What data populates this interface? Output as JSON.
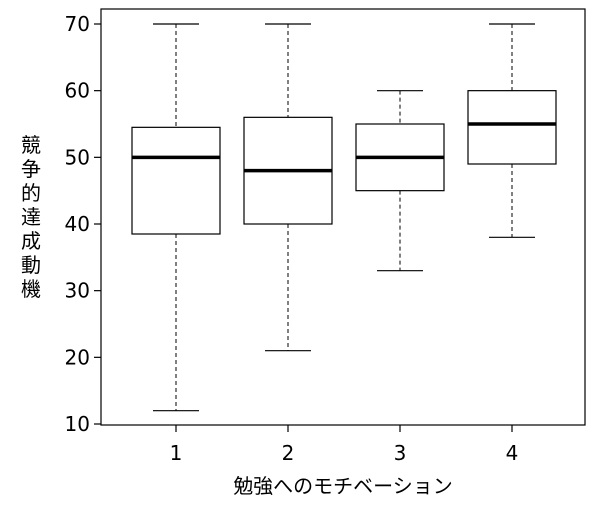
{
  "chart_data": {
    "type": "boxplot",
    "xlabel": "勉強へのモチベーション",
    "ylabel": "競争的達成動機",
    "ylim": [
      10,
      70
    ],
    "yticks": [
      10,
      20,
      30,
      40,
      50,
      60,
      70
    ],
    "categories": [
      "1",
      "2",
      "3",
      "4"
    ],
    "boxes": [
      {
        "category": "1",
        "min": 12,
        "q1": 38.5,
        "median": 50,
        "q3": 54.5,
        "max": 70
      },
      {
        "category": "2",
        "min": 21,
        "q1": 40,
        "median": 48,
        "q3": 56,
        "max": 70
      },
      {
        "category": "3",
        "min": 33,
        "q1": 45,
        "median": 50,
        "q3": 55,
        "max": 60
      },
      {
        "category": "4",
        "min": 38,
        "q1": 49,
        "median": 55,
        "q3": 60,
        "max": 70
      }
    ],
    "grid": false,
    "legend": "none"
  }
}
